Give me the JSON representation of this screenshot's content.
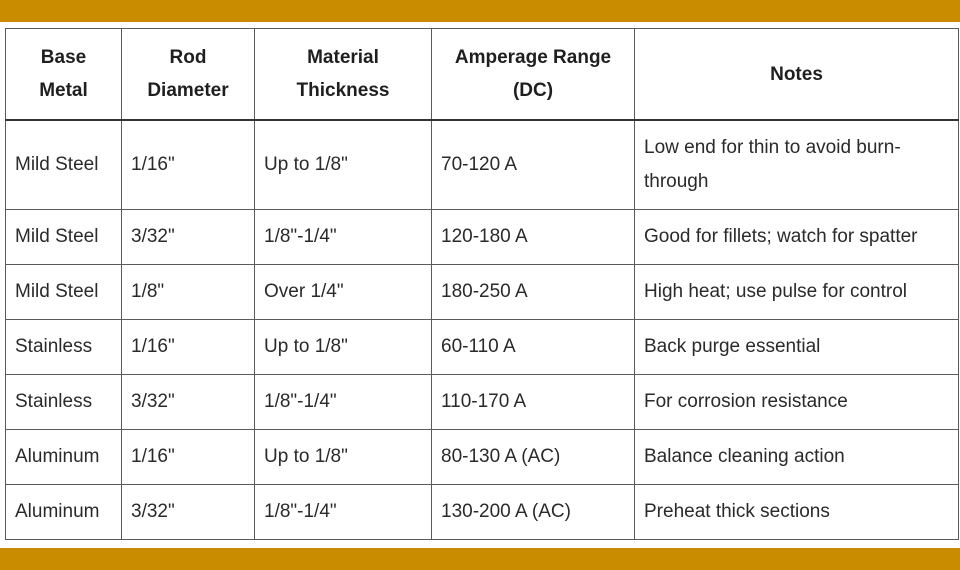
{
  "table": {
    "headers": [
      {
        "line1": "Base",
        "line2": "Metal"
      },
      {
        "line1": "Rod",
        "line2": "Diameter"
      },
      {
        "line1": "Material",
        "line2": "Thickness"
      },
      {
        "line1": "Amperage Range",
        "line2": "(DC)"
      },
      {
        "line1": "Notes",
        "line2": ""
      }
    ],
    "rows": [
      {
        "base_metal": "Mild Steel",
        "rod_diameter": "1/16\"",
        "material_thickness": "Up to 1/8\"",
        "amperage": "70-120 A",
        "notes_line1": "Low end for thin to avoid burn-",
        "notes_line2": "through"
      },
      {
        "base_metal": "Mild Steel",
        "rod_diameter": "3/32\"",
        "material_thickness": "1/8\"-1/4\"",
        "amperage": "120-180 A",
        "notes": "Good for fillets; watch for spatter"
      },
      {
        "base_metal": "Mild Steel",
        "rod_diameter": "1/8\"",
        "material_thickness": "Over 1/4\"",
        "amperage": "180-250 A",
        "notes": "High heat; use pulse for control"
      },
      {
        "base_metal": "Stainless",
        "rod_diameter": "1/16\"",
        "material_thickness": "Up to 1/8\"",
        "amperage": "60-110 A",
        "notes": "Back purge essential"
      },
      {
        "base_metal": "Stainless",
        "rod_diameter": "3/32\"",
        "material_thickness": "1/8\"-1/4\"",
        "amperage": "110-170 A",
        "notes": "For corrosion resistance"
      },
      {
        "base_metal": "Aluminum",
        "rod_diameter": "1/16\"",
        "material_thickness": "Up to 1/8\"",
        "amperage": "80-130 A (AC)",
        "notes": "Balance cleaning action"
      },
      {
        "base_metal": "Aluminum",
        "rod_diameter": "3/32\"",
        "material_thickness": "1/8\"-1/4\"",
        "amperage": "130-200 A (AC)",
        "notes": "Preheat thick sections"
      }
    ]
  },
  "colors": {
    "frame_band": "#c98c00",
    "table_border": "#5a5a5a",
    "text": "#2a2a2a",
    "background": "#ffffff"
  }
}
